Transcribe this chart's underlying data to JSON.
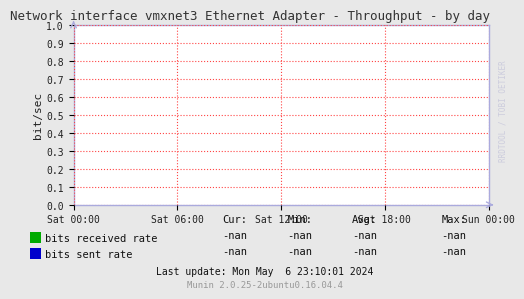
{
  "title": "Network interface vmxnet3 Ethernet Adapter - Throughput - by day",
  "ylabel": "bit/sec",
  "ylim": [
    0.0,
    1.0
  ],
  "yticks": [
    0.0,
    0.1,
    0.2,
    0.3,
    0.4,
    0.5,
    0.6,
    0.7,
    0.8,
    0.9,
    1.0
  ],
  "xtick_labels": [
    "Sat 00:00",
    "Sat 06:00",
    "Sat 12:00",
    "Sat 18:00",
    "Sun 00:00"
  ],
  "bg_color": "#e8e8e8",
  "plot_bg_color": "#ffffff",
  "grid_color": "#ff4444",
  "axis_color": "#aaaadd",
  "title_color": "#333333",
  "legend_items": [
    {
      "label": "bits received rate",
      "color": "#00aa00"
    },
    {
      "label": "bits sent rate",
      "color": "#0000cc"
    }
  ],
  "legend_cur": [
    "-nan",
    "-nan"
  ],
  "legend_min": [
    "-nan",
    "-nan"
  ],
  "legend_avg": [
    "-nan",
    "-nan"
  ],
  "legend_max": [
    "-nan",
    "-nan"
  ],
  "footer_text": "Last update: Mon May  6 23:10:01 2024",
  "watermark": "RRDTOOL / TOBI OETIKER",
  "munin_version": "Munin 2.0.25-2ubuntu0.16.04.4",
  "title_fontsize": 9,
  "ylabel_fontsize": 8,
  "tick_fontsize": 7,
  "legend_fontsize": 7.5,
  "footer_fontsize": 7,
  "munin_fontsize": 6.5,
  "watermark_fontsize": 5.5
}
